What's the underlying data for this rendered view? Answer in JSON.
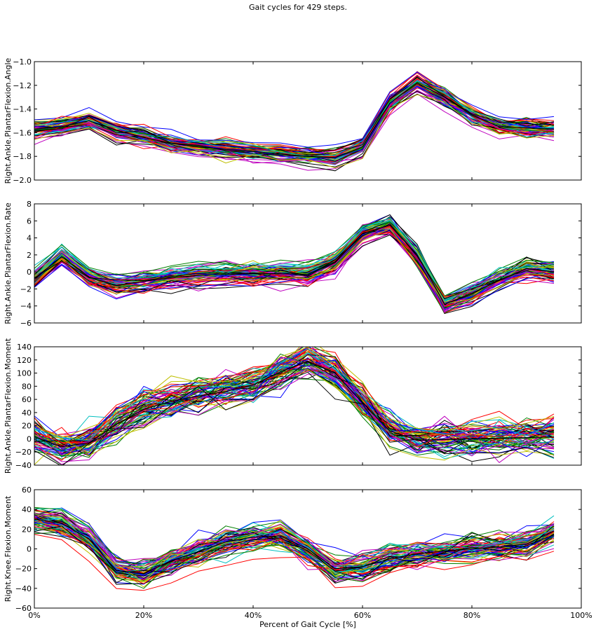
{
  "figure": {
    "title": "Gait cycles for 429 steps.",
    "xlabel": "Percent of Gait Cycle [%]",
    "x_tick_labels": [
      "0%",
      "20%",
      "40%",
      "60%",
      "80%",
      "100%"
    ]
  },
  "chart_data": [
    {
      "type": "line",
      "ylabel": "Right.Ankle.PlantarFlexion.Angle",
      "xlim": [
        0,
        100
      ],
      "ylim": [
        -2.0,
        -1.0
      ],
      "y_ticks": [
        -2.0,
        -1.8,
        -1.6,
        -1.4,
        -1.2,
        -1.0
      ],
      "y_tick_labels": [
        "−2.0",
        "−1.8",
        "−1.6",
        "−1.4",
        "−1.2",
        "−1.0"
      ],
      "x": [
        0,
        5,
        10,
        15,
        20,
        25,
        30,
        35,
        40,
        45,
        50,
        55,
        60,
        65,
        70,
        75,
        80,
        85,
        90,
        95
      ],
      "mean": [
        -1.57,
        -1.55,
        -1.5,
        -1.58,
        -1.64,
        -1.69,
        -1.72,
        -1.74,
        -1.76,
        -1.78,
        -1.8,
        -1.81,
        -1.72,
        -1.35,
        -1.18,
        -1.3,
        -1.45,
        -1.55,
        -1.56,
        -1.57
      ],
      "spread": 0.045,
      "n_traces": 429
    },
    {
      "type": "line",
      "ylabel": "Right.Ankle.PlantarFlexion.Rate",
      "xlim": [
        0,
        100
      ],
      "ylim": [
        -6,
        8
      ],
      "y_ticks": [
        -6,
        -4,
        -2,
        0,
        2,
        4,
        6,
        8
      ],
      "y_tick_labels": [
        "−6",
        "−4",
        "−2",
        "0",
        "2",
        "4",
        "6",
        "8"
      ],
      "x": [
        0,
        5,
        10,
        15,
        20,
        25,
        30,
        35,
        40,
        45,
        50,
        55,
        60,
        65,
        70,
        75,
        80,
        85,
        90,
        95
      ],
      "mean": [
        -0.8,
        1.8,
        -0.6,
        -1.6,
        -1.1,
        -0.7,
        -0.4,
        -0.3,
        -0.2,
        -0.2,
        -0.3,
        1.2,
        4.5,
        5.5,
        2.0,
        -3.8,
        -2.5,
        -1.0,
        0.4,
        0.0
      ],
      "spread": 0.7,
      "n_traces": 429
    },
    {
      "type": "line",
      "ylabel": "Right.Ankle.PlantarFlexion.Moment",
      "xlim": [
        0,
        100
      ],
      "ylim": [
        -40,
        140
      ],
      "y_ticks": [
        -40,
        -20,
        0,
        20,
        40,
        60,
        80,
        100,
        120,
        140
      ],
      "y_tick_labels": [
        "−40",
        "−20",
        "0",
        "20",
        "40",
        "60",
        "80",
        "100",
        "120",
        "140"
      ],
      "x": [
        0,
        5,
        10,
        15,
        20,
        25,
        30,
        35,
        40,
        45,
        50,
        55,
        60,
        65,
        70,
        75,
        80,
        85,
        90,
        95
      ],
      "mean": [
        3,
        -12,
        -6,
        22,
        45,
        57,
        65,
        72,
        82,
        102,
        118,
        100,
        55,
        12,
        -2,
        -1,
        0,
        1,
        2,
        3
      ],
      "spread": 18,
      "n_traces": 429
    },
    {
      "type": "line",
      "ylabel": "Right.Knee.Flexion.Moment",
      "xlim": [
        0,
        100
      ],
      "ylim": [
        -60,
        60
      ],
      "y_ticks": [
        -60,
        -40,
        -20,
        0,
        20,
        40,
        60
      ],
      "y_tick_labels": [
        "−60",
        "−40",
        "−20",
        "0",
        "20",
        "40",
        "60"
      ],
      "x": [
        0,
        5,
        10,
        15,
        20,
        25,
        30,
        35,
        40,
        45,
        50,
        55,
        60,
        65,
        70,
        75,
        80,
        85,
        90,
        95
      ],
      "mean": [
        30,
        26,
        10,
        -22,
        -25,
        -12,
        -3,
        7,
        12,
        13,
        0,
        -20,
        -18,
        -10,
        -5,
        -2,
        0,
        2,
        5,
        18
      ],
      "spread": 9,
      "n_traces": 429
    }
  ],
  "series_colors": [
    "#0000ff",
    "#008000",
    "#ff0000",
    "#00bfbf",
    "#bf00bf",
    "#bfbf00",
    "#000000"
  ]
}
